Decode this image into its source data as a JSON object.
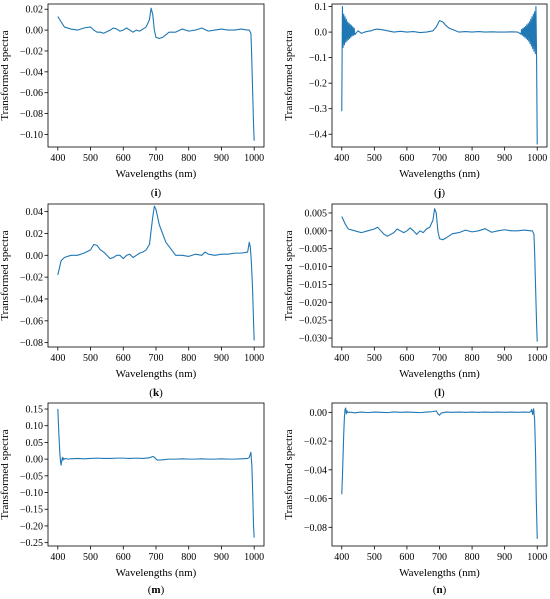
{
  "chart_data": [
    {
      "type": "line",
      "panel_label": "(i)",
      "xlabel": "Wavelengths (nm)",
      "ylabel": "Transformed spectra",
      "xlim": [
        370,
        1030
      ],
      "ylim": [
        -0.112,
        0.025
      ],
      "xticks": [
        400,
        500,
        600,
        700,
        800,
        900,
        1000
      ],
      "yticks": [
        0.02,
        0.0,
        -0.02,
        -0.04,
        -0.06,
        -0.08,
        -0.1
      ],
      "ytick_labels": [
        "0.02",
        "0.00",
        "−0.02",
        "−0.04",
        "−0.06",
        "−0.08",
        "−0.10"
      ],
      "series": [
        {
          "color": "#1f77b4",
          "x": [
            400,
            410,
            420,
            440,
            460,
            480,
            500,
            510,
            520,
            530,
            540,
            560,
            570,
            580,
            590,
            600,
            610,
            620,
            630,
            640,
            650,
            660,
            670,
            680,
            685,
            690,
            695,
            700,
            710,
            720,
            740,
            760,
            780,
            800,
            820,
            840,
            860,
            880,
            900,
            920,
            940,
            960,
            980,
            985,
            990,
            992,
            995,
            998,
            1000
          ],
          "y": [
            0.013,
            0.008,
            0.003,
            0.001,
            0.0,
            0.002,
            0.003,
            0.0,
            -0.002,
            -0.002,
            -0.003,
            0.0,
            0.002,
            0.001,
            -0.001,
            0.0,
            0.002,
            0.0,
            -0.002,
            0.0,
            -0.001,
            0.001,
            0.003,
            0.01,
            0.021,
            0.015,
            0.0,
            -0.007,
            -0.008,
            -0.007,
            -0.002,
            -0.002,
            0.001,
            -0.001,
            0.0,
            0.002,
            -0.001,
            0.0,
            0.001,
            0.0,
            0.0,
            0.001,
            0.0,
            0.0,
            -0.003,
            -0.02,
            -0.055,
            -0.09,
            -0.106
          ]
        }
      ]
    },
    {
      "type": "line",
      "panel_label": "(j)",
      "xlabel": "Wavelengths (nm)",
      "ylabel": "Transformed spectra",
      "xlim": [
        370,
        1030
      ],
      "ylim": [
        -0.45,
        0.11
      ],
      "xticks": [
        400,
        500,
        600,
        700,
        800,
        900,
        1000
      ],
      "yticks": [
        0.1,
        0.0,
        -0.1,
        -0.2,
        -0.3,
        -0.4
      ],
      "ytick_labels": [
        "0.1",
        "0.0",
        "−0.1",
        "−0.2",
        "−0.3",
        "−0.4"
      ],
      "series": [
        {
          "color": "#1f77b4",
          "x": [
            400,
            402,
            404,
            406,
            408,
            410,
            412,
            414,
            416,
            418,
            420,
            422,
            424,
            426,
            428,
            430,
            432,
            434,
            436,
            438,
            440,
            450,
            460,
            470,
            480,
            490,
            500,
            510,
            520,
            530,
            540,
            560,
            580,
            600,
            620,
            640,
            660,
            680,
            690,
            700,
            710,
            720,
            730,
            740,
            760,
            780,
            800,
            820,
            840,
            860,
            880,
            900,
            920,
            940,
            950,
            952,
            954,
            956,
            958,
            960,
            962,
            964,
            966,
            968,
            970,
            972,
            974,
            976,
            978,
            980,
            982,
            984,
            986,
            988,
            990,
            992,
            994,
            996,
            998,
            1000
          ],
          "y": [
            -0.31,
            0.1,
            -0.06,
            0.07,
            -0.05,
            0.06,
            -0.04,
            0.05,
            -0.035,
            0.04,
            -0.03,
            0.035,
            -0.025,
            0.03,
            -0.02,
            0.025,
            -0.015,
            0.02,
            -0.012,
            0.015,
            -0.01,
            0.005,
            -0.005,
            0.0,
            0.003,
            0.005,
            0.01,
            0.012,
            0.01,
            0.008,
            0.005,
            0.0,
            0.003,
            0.0,
            0.002,
            -0.002,
            0.0,
            0.005,
            0.02,
            0.045,
            0.04,
            0.025,
            0.015,
            0.01,
            0.0,
            0.002,
            0.0,
            0.002,
            0.0,
            0.001,
            0.0,
            0.0,
            0.001,
            0.0,
            -0.008,
            0.01,
            -0.012,
            0.014,
            -0.016,
            0.018,
            -0.02,
            0.022,
            -0.025,
            0.028,
            -0.03,
            0.033,
            -0.036,
            0.04,
            -0.045,
            0.05,
            -0.055,
            0.06,
            -0.065,
            0.07,
            -0.075,
            0.08,
            -0.085,
            0.1,
            -0.1,
            -0.44
          ]
        }
      ]
    },
    {
      "type": "line",
      "panel_label": "(k)",
      "xlabel": "Wavelengths (nm)",
      "ylabel": "Transformed spectra",
      "xlim": [
        370,
        1030
      ],
      "ylim": [
        -0.084,
        0.047
      ],
      "xticks": [
        400,
        500,
        600,
        700,
        800,
        900,
        1000
      ],
      "yticks": [
        0.04,
        0.02,
        0.0,
        -0.02,
        -0.04,
        -0.06,
        -0.08
      ],
      "ytick_labels": [
        "0.04",
        "0.02",
        "0.00",
        "−0.02",
        "−0.04",
        "−0.06",
        "−0.08"
      ],
      "series": [
        {
          "color": "#1f77b4",
          "x": [
            400,
            410,
            420,
            440,
            460,
            480,
            500,
            510,
            520,
            530,
            540,
            560,
            570,
            580,
            590,
            600,
            610,
            620,
            630,
            640,
            650,
            660,
            670,
            680,
            690,
            695,
            700,
            705,
            710,
            720,
            730,
            740,
            760,
            780,
            800,
            820,
            840,
            850,
            860,
            880,
            900,
            920,
            940,
            960,
            980,
            985,
            988,
            990,
            992,
            995,
            998,
            1000
          ],
          "y": [
            -0.018,
            -0.005,
            -0.002,
            0.0,
            0.0,
            0.002,
            0.005,
            0.01,
            0.009,
            0.005,
            0.003,
            -0.003,
            -0.002,
            0.0,
            0.0,
            -0.003,
            0.0,
            0.001,
            -0.002,
            0.0,
            0.002,
            0.003,
            0.005,
            0.01,
            0.035,
            0.045,
            0.042,
            0.035,
            0.028,
            0.02,
            0.012,
            0.008,
            0.0,
            0.0,
            -0.001,
            0.001,
            0.0,
            0.003,
            0.001,
            0.0,
            0.001,
            0.001,
            0.002,
            0.002,
            0.003,
            0.012,
            0.008,
            0.0,
            -0.01,
            -0.03,
            -0.06,
            -0.078
          ]
        }
      ]
    },
    {
      "type": "line",
      "panel_label": "(l)",
      "xlabel": "Wavelengths (nm)",
      "ylabel": "Transformed spectra",
      "xlim": [
        370,
        1030
      ],
      "ylim": [
        -0.0325,
        0.0075
      ],
      "xticks": [
        400,
        500,
        600,
        700,
        800,
        900,
        1000
      ],
      "yticks": [
        0.005,
        0.0,
        -0.005,
        -0.01,
        -0.015,
        -0.02,
        -0.025,
        -0.03
      ],
      "ytick_labels": [
        "0.005",
        "0.000",
        "−0.005",
        "−0.010",
        "−0.015",
        "−0.020",
        "−0.025",
        "−0.030"
      ],
      "series": [
        {
          "color": "#1f77b4",
          "x": [
            400,
            410,
            420,
            440,
            460,
            480,
            500,
            510,
            520,
            530,
            540,
            560,
            570,
            580,
            590,
            600,
            610,
            620,
            630,
            640,
            650,
            660,
            670,
            680,
            685,
            690,
            695,
            700,
            710,
            720,
            740,
            760,
            780,
            800,
            820,
            840,
            860,
            880,
            900,
            920,
            940,
            960,
            980,
            985,
            990,
            992,
            995,
            998,
            1000
          ],
          "y": [
            0.004,
            0.002,
            0.0005,
            0.0,
            -0.0005,
            0.0,
            0.0005,
            0.001,
            0.0,
            -0.001,
            -0.0015,
            -0.0005,
            0.0005,
            0.0,
            -0.0005,
            0.0,
            0.0008,
            0.0,
            -0.001,
            0.0,
            -0.0005,
            0.0005,
            0.001,
            0.003,
            0.0062,
            0.005,
            0.0,
            -0.0022,
            -0.0025,
            -0.002,
            -0.0008,
            -0.0005,
            0.0002,
            -0.0003,
            0.0,
            0.0006,
            -0.0004,
            0.0,
            0.0003,
            0.0,
            0.0,
            0.0002,
            0.0,
            0.0,
            -0.001,
            -0.006,
            -0.016,
            -0.026,
            -0.031
          ]
        }
      ]
    },
    {
      "type": "line",
      "panel_label": "(m)",
      "xlabel": "Wavelengths (nm)",
      "ylabel": "Transformed spectra",
      "xlim": [
        370,
        1030
      ],
      "ylim": [
        -0.26,
        0.168
      ],
      "xticks": [
        400,
        500,
        600,
        700,
        800,
        900,
        1000
      ],
      "yticks": [
        0.15,
        0.1,
        0.05,
        0.0,
        -0.05,
        -0.1,
        -0.15,
        -0.2,
        -0.25
      ],
      "ytick_labels": [
        "0.15",
        "0.10",
        "0.05",
        "0.00",
        "−0.05",
        "−0.10",
        "−0.15",
        "−0.20",
        "−0.25"
      ],
      "series": [
        {
          "color": "#1f77b4",
          "x": [
            400,
            403,
            406,
            408,
            410,
            412,
            414,
            416,
            418,
            420,
            425,
            430,
            440,
            460,
            480,
            500,
            520,
            540,
            560,
            580,
            600,
            620,
            640,
            660,
            680,
            690,
            695,
            700,
            705,
            720,
            740,
            760,
            780,
            800,
            820,
            840,
            860,
            880,
            900,
            920,
            940,
            960,
            980,
            985,
            990,
            993,
            996,
            998,
            1000
          ],
          "y": [
            0.15,
            0.08,
            0.02,
            -0.005,
            -0.018,
            -0.005,
            0.005,
            -0.003,
            0.003,
            0.0,
            0.002,
            0.0,
            0.001,
            0.002,
            0.001,
            0.002,
            0.003,
            0.002,
            0.002,
            0.003,
            0.003,
            0.002,
            0.003,
            0.002,
            0.004,
            0.008,
            0.006,
            0.0,
            -0.003,
            -0.002,
            0.0,
            0.0,
            0.001,
            0.0,
            0.0,
            0.001,
            0.0,
            0.0,
            0.001,
            0.0,
            0.0,
            0.001,
            0.002,
            0.005,
            0.02,
            -0.02,
            -0.12,
            -0.2,
            -0.235
          ]
        }
      ]
    },
    {
      "type": "line",
      "panel_label": "(n)",
      "xlabel": "Wavelengths (nm)",
      "ylabel": "Transformed spectra",
      "xlim": [
        370,
        1030
      ],
      "ylim": [
        -0.093,
        0.0065
      ],
      "xticks": [
        400,
        500,
        600,
        700,
        800,
        900,
        1000
      ],
      "yticks": [
        0.0,
        -0.02,
        -0.04,
        -0.06,
        -0.08
      ],
      "ytick_labels": [
        "0.00",
        "−0.02",
        "−0.04",
        "−0.06",
        "−0.08"
      ],
      "series": [
        {
          "color": "#1f77b4",
          "x": [
            400,
            402,
            404,
            406,
            408,
            410,
            412,
            414,
            416,
            418,
            420,
            430,
            440,
            460,
            480,
            500,
            520,
            540,
            560,
            580,
            600,
            620,
            640,
            660,
            680,
            690,
            695,
            700,
            705,
            720,
            740,
            760,
            780,
            800,
            820,
            840,
            860,
            880,
            900,
            920,
            940,
            960,
            975,
            980,
            983,
            986,
            989,
            992,
            995,
            997,
            1000
          ],
          "y": [
            -0.057,
            -0.045,
            -0.03,
            -0.015,
            -0.004,
            0.002,
            0.003,
            -0.001,
            0.001,
            0.0,
            0.0,
            0.0,
            -0.0003,
            0.0002,
            -0.0002,
            0.0002,
            0.0,
            -0.0002,
            0.0003,
            0.0,
            0.0002,
            0.0,
            -0.0002,
            0.0002,
            0.0005,
            0.001,
            -0.001,
            -0.002,
            -0.0005,
            0.0002,
            0.0,
            0.0002,
            0.0,
            0.0002,
            0.0,
            0.0002,
            0.0,
            0.0002,
            0.0,
            0.0002,
            0.0,
            0.0002,
            0.0,
            0.0005,
            0.002,
            -0.0015,
            0.0025,
            -0.005,
            -0.03,
            -0.06,
            -0.088
          ]
        }
      ]
    }
  ]
}
